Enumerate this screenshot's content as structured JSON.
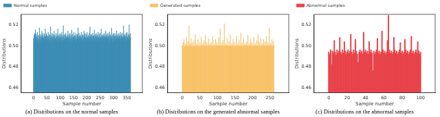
{
  "chart_data": [
    {
      "type": "bar",
      "title": "(a) Distributions on the normal samples",
      "x_label": "Sample number",
      "y_label": "Distributions",
      "legend": "upper left",
      "grid": false,
      "xlim": [
        -18,
        380
      ],
      "xticks": [
        0,
        50,
        100,
        150,
        200,
        250,
        300,
        350
      ],
      "ylim": [
        0.455,
        0.53
      ],
      "yticks": [
        0.46,
        0.48,
        {
          "value": 0.5,
          "label": "0.50"
        },
        0.52
      ],
      "series": [
        {
          "name": "Normal samples",
          "color": "#3c8db5",
          "values": [
            0.507,
            0.503,
            0.51,
            0.505,
            0.512,
            0.502,
            0.508,
            0.515,
            0.504,
            0.509,
            0.506,
            0.511,
            0.503,
            0.508,
            0.513,
            0.505,
            0.507,
            0.502,
            0.51,
            0.506,
            0.504,
            0.509,
            0.517,
            0.505,
            0.508,
            0.503,
            0.511,
            0.506,
            0.509,
            0.502,
            0.507,
            0.514,
            0.505,
            0.51,
            0.504,
            0.508,
            0.512,
            0.503,
            0.507,
            0.509,
            0.505,
            0.511,
            0.504,
            0.508,
            0.516,
            0.503,
            0.509,
            0.506,
            0.512,
            0.504,
            0.507,
            0.51,
            0.503,
            0.508,
            0.505,
            0.513,
            0.506,
            0.509,
            0.502,
            0.511,
            0.507,
            0.504,
            0.51,
            0.505,
            0.518,
            0.506,
            0.503,
            0.509,
            0.507,
            0.512,
            0.504,
            0.508,
            0.505,
            0.511,
            0.503,
            0.509,
            0.506,
            0.514,
            0.504,
            0.508,
            0.51,
            0.505,
            0.507,
            0.503,
            0.512,
            0.506,
            0.509,
            0.504,
            0.508,
            0.511,
            0.505,
            0.516,
            0.503,
            0.507,
            0.51,
            0.504,
            0.509,
            0.506,
            0.512,
            0.505,
            0.508,
            0.503,
            0.511,
            0.506,
            0.509,
            0.504,
            0.513,
            0.507,
            0.505,
            0.51,
            0.503,
            0.508,
            0.519,
            0.505,
            0.509,
            0.506,
            0.511,
            0.504,
            0.507,
            0.51,
            0.505,
            0.512,
            0.503,
            0.508,
            0.506,
            0.51,
            0.504,
            0.509,
            0.507,
            0.514,
            0.505,
            0.508,
            0.503,
            0.511,
            0.506,
            0.509,
            0.504,
            0.512,
            0.507,
            0.505,
            0.51,
            0.503,
            0.508,
            0.515,
            0.506,
            0.509,
            0.504,
            0.511,
            0.505,
            0.508,
            0.507,
            0.513,
            0.503,
            0.509,
            0.506,
            0.51,
            0.504,
            0.508,
            0.512,
            0.505,
            0.509,
            0.506,
            0.503,
            0.511,
            0.507,
            0.51,
            0.504,
            0.517,
            0.505,
            0.508,
            0.506,
            0.512,
            0.503,
            0.509,
            0.507,
            0.51,
            0.505,
            0.508,
            0.504,
            0.513,
            0.506,
            0.509,
            0.503,
            0.511,
            0.507,
            0.505,
            0.51,
            0.504,
            0.508,
            0.514,
            0.506,
            0.509,
            0.503,
            0.512,
            0.505,
            0.508,
            0.507,
            0.511,
            0.504,
            0.509,
            0.506,
            0.513,
            0.505,
            0.508,
            0.503,
            0.51,
            0.507,
            0.509,
            0.504,
            0.512,
            0.506,
            0.508,
            0.518,
            0.505,
            0.509,
            0.503,
            0.511,
            0.507,
            0.51,
            0.504,
            0.508,
            0.505,
            0.512,
            0.506,
            0.509,
            0.503,
            0.51,
            0.507,
            0.515,
            0.504,
            0.508,
            0.506,
            0.511,
            0.505,
            0.509,
            0.503,
            0.512,
            0.507,
            0.508,
            0.504,
            0.51,
            0.506,
            0.513,
            0.505,
            0.508,
            0.503,
            0.511,
            0.507,
            0.509,
            0.504,
            0.512,
            0.506,
            0.508,
            0.505,
            0.516,
            0.503,
            0.509,
            0.507,
            0.51,
            0.504,
            0.508,
            0.511,
            0.505,
            0.509,
            0.503,
            0.512,
            0.506,
            0.508,
            0.504,
            0.51,
            0.507,
            0.514,
            0.505,
            0.509,
            0.503,
            0.511,
            0.506,
            0.508,
            0.505,
            0.512,
            0.507,
            0.509,
            0.504,
            0.51,
            0.506,
            0.513,
            0.503,
            0.508,
            0.505,
            0.511,
            0.507,
            0.509,
            0.504,
            0.517,
            0.506,
            0.508,
            0.503,
            0.51,
            0.505,
            0.512,
            0.508,
            0.504,
            0.511,
            0.506,
            0.509,
            0.503,
            0.512,
            0.507,
            0.508,
            0.505,
            0.51,
            0.504,
            0.514,
            0.506,
            0.509,
            0.503,
            0.511,
            0.507,
            0.508,
            0.505,
            0.512,
            0.506,
            0.509,
            0.504,
            0.51,
            0.507,
            0.513,
            0.505,
            0.508,
            0.503,
            0.511,
            0.506,
            0.509,
            0.504,
            0.512,
            0.507,
            0.508,
            0.505,
            0.519,
            0.506,
            0.509,
            0.503,
            0.511,
            0.507,
            0.51,
            0.504,
            0.508,
            0.512,
            0.505,
            0.509,
            0.506,
            0.513,
            0.503,
            0.508,
            0.507,
            0.511,
            0.504,
            0.509,
            0.506,
            0.52,
            0.505,
            0.51,
            0.507,
            0.508,
            0.512
          ]
        }
      ]
    },
    {
      "type": "bar",
      "title": "(b) Distributions on the generated abnormal samples",
      "x_label": "Sample number",
      "y_label": "Distributions",
      "legend": "upper left",
      "grid": false,
      "xlim": [
        -13,
        275
      ],
      "xticks": [
        0,
        50,
        100,
        150,
        200,
        250
      ],
      "ylim": [
        0.455,
        0.53
      ],
      "yticks": [
        0.46,
        0.48,
        {
          "value": 0.5,
          "label": "0.50"
        },
        0.52
      ],
      "series": [
        {
          "name": "Generated samples",
          "color": "#f8c36a",
          "values": [
            0.5,
            0.499,
            0.503,
            0.499,
            0.5,
            0.506,
            0.499,
            0.498,
            0.5,
            0.502,
            0.499,
            0.5,
            0.508,
            0.499,
            0.5,
            0.499,
            0.504,
            0.5,
            0.499,
            0.519,
            0.5,
            0.499,
            0.502,
            0.5,
            0.499,
            0.507,
            0.5,
            0.499,
            0.5,
            0.503,
            0.499,
            0.498,
            0.5,
            0.505,
            0.499,
            0.5,
            0.499,
            0.511,
            0.5,
            0.499,
            0.5,
            0.502,
            0.499,
            0.5,
            0.499,
            0.506,
            0.5,
            0.499,
            0.497,
            0.5,
            0.503,
            0.499,
            0.5,
            0.499,
            0.508,
            0.5,
            0.499,
            0.5,
            0.502,
            0.499,
            0.5,
            0.499,
            0.505,
            0.5,
            0.499,
            0.5,
            0.51,
            0.499,
            0.5,
            0.499,
            0.503,
            0.5,
            0.499,
            0.5,
            0.499,
            0.507,
            0.5,
            0.499,
            0.5,
            0.502,
            0.499,
            0.5,
            0.499,
            0.504,
            0.5,
            0.499,
            0.5,
            0.509,
            0.499,
            0.5,
            0.499,
            0.502,
            0.5,
            0.499,
            0.5,
            0.506,
            0.499,
            0.5,
            0.499,
            0.503,
            0.5,
            0.499,
            0.5,
            0.499,
            0.508,
            0.5,
            0.499,
            0.5,
            0.516,
            0.499,
            0.5,
            0.499,
            0.503,
            0.5,
            0.499,
            0.5,
            0.505,
            0.499,
            0.5,
            0.499,
            0.521,
            0.5,
            0.499,
            0.5,
            0.502,
            0.499,
            0.5,
            0.499,
            0.507,
            0.5,
            0.499,
            0.5,
            0.499,
            0.504,
            0.5,
            0.499,
            0.5,
            0.511,
            0.499,
            0.5,
            0.499,
            0.502,
            0.5,
            0.499,
            0.5,
            0.506,
            0.499,
            0.5,
            0.499,
            0.503,
            0.5,
            0.499,
            0.5,
            0.499,
            0.509,
            0.5,
            0.499,
            0.5,
            0.502,
            0.499,
            0.5,
            0.499,
            0.505,
            0.5,
            0.499,
            0.5,
            0.499,
            0.512,
            0.5,
            0.499,
            0.5,
            0.503,
            0.499,
            0.5,
            0.499,
            0.507,
            0.5,
            0.499,
            0.5,
            0.502,
            0.499,
            0.5,
            0.499,
            0.504,
            0.5,
            0.499,
            0.5,
            0.51,
            0.499,
            0.5,
            0.499,
            0.502,
            0.5,
            0.499,
            0.5,
            0.506,
            0.499,
            0.5,
            0.499,
            0.503,
            0.5,
            0.499,
            0.5,
            0.499,
            0.508,
            0.5,
            0.499,
            0.5,
            0.502,
            0.499,
            0.5,
            0.499,
            0.505,
            0.5,
            0.499,
            0.5,
            0.511,
            0.499,
            0.5,
            0.499,
            0.503,
            0.5,
            0.499,
            0.5,
            0.507,
            0.499,
            0.5,
            0.499,
            0.502,
            0.5,
            0.499,
            0.5,
            0.506,
            0.499,
            0.5,
            0.499,
            0.504,
            0.5,
            0.499,
            0.5,
            0.509,
            0.499,
            0.5,
            0.499,
            0.503,
            0.5,
            0.499,
            0.5,
            0.517,
            0.499,
            0.5,
            0.499,
            0.502,
            0.5,
            0.499,
            0.5,
            0.506,
            0.499,
            0.5,
            0.499,
            0.504,
            0.5
          ]
        }
      ]
    },
    {
      "type": "bar",
      "title": "(c) Distributions on the abnormal samples",
      "x_label": "Sample number",
      "y_label": "Distributions",
      "legend": "upper left",
      "grid": false,
      "xlim": [
        -5,
        105
      ],
      "xticks": [
        0,
        20,
        40,
        60,
        80,
        100
      ],
      "ylim": [
        0.455,
        0.53
      ],
      "yticks": [
        0.46,
        0.48,
        {
          "value": 0.5,
          "label": "0.50"
        },
        0.52
      ],
      "series": [
        {
          "name": "Abnormal samples",
          "color": "#e8434a",
          "values": [
            0.494,
            0.492,
            0.496,
            0.482,
            0.495,
            0.493,
            0.505,
            0.494,
            0.491,
            0.496,
            0.493,
            0.495,
            0.508,
            0.494,
            0.492,
            0.496,
            0.493,
            0.504,
            0.495,
            0.492,
            0.494,
            0.496,
            0.493,
            0.495,
            0.511,
            0.494,
            0.492,
            0.496,
            0.493,
            0.506,
            0.495,
            0.492,
            0.484,
            0.494,
            0.496,
            0.493,
            0.495,
            0.492,
            0.513,
            0.494,
            0.496,
            0.493,
            0.495,
            0.492,
            0.504,
            0.494,
            0.496,
            0.493,
            0.476,
            0.495,
            0.492,
            0.494,
            0.496,
            0.507,
            0.493,
            0.495,
            0.492,
            0.494,
            0.514,
            0.496,
            0.493,
            0.495,
            0.492,
            0.494,
            0.505,
            0.529,
            0.496,
            0.493,
            0.495,
            0.492,
            0.494,
            0.508,
            0.496,
            0.493,
            0.495,
            0.492,
            0.494,
            0.496,
            0.503,
            0.493,
            0.495,
            0.492,
            0.494,
            0.506,
            0.496,
            0.493,
            0.495,
            0.492,
            0.494,
            0.496,
            0.509,
            0.493,
            0.495,
            0.492,
            0.494,
            0.496,
            0.493,
            0.504,
            0.495,
            0.492,
            0.494
          ]
        }
      ]
    }
  ]
}
